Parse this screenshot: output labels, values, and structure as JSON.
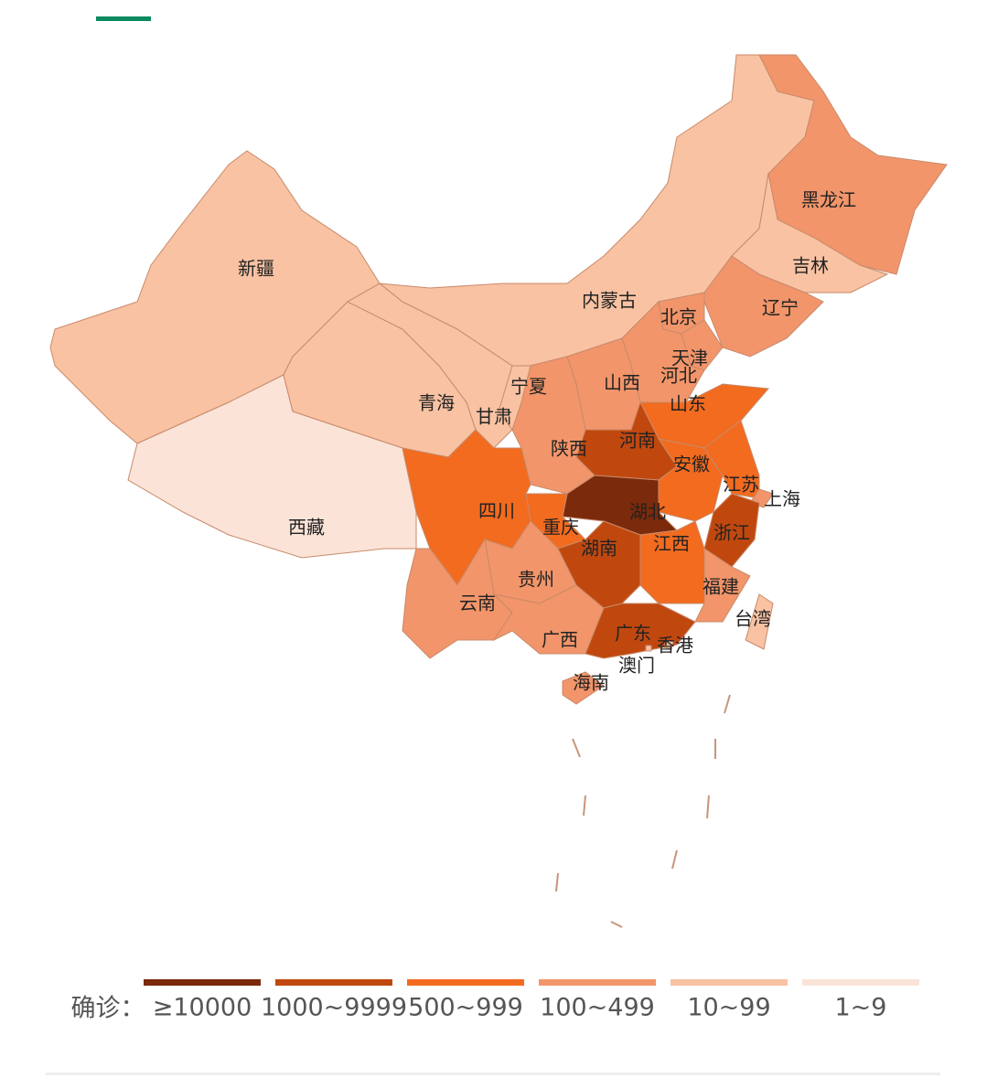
{
  "legend": {
    "title": "确诊：",
    "items": [
      {
        "label": "≥10000",
        "color": "#7b2a0c"
      },
      {
        "label": "1000~9999",
        "color": "#c0480f"
      },
      {
        "label": "500~999",
        "color": "#f26b1f"
      },
      {
        "label": "100~499",
        "color": "#f2956a"
      },
      {
        "label": "10~99",
        "color": "#f8c2a3"
      },
      {
        "label": "1~9",
        "color": "#fbe3d8"
      }
    ]
  },
  "provinces": [
    {
      "name": "新疆",
      "color": "#f8c2a3"
    },
    {
      "name": "西藏",
      "color": "#fbe3d8"
    },
    {
      "name": "青海",
      "color": "#f8c2a3"
    },
    {
      "name": "甘肃",
      "color": "#f8c2a3"
    },
    {
      "name": "内蒙古",
      "color": "#f8c2a3"
    },
    {
      "name": "黑龙江",
      "color": "#f2956a"
    },
    {
      "name": "吉林",
      "color": "#f8c2a3"
    },
    {
      "name": "辽宁",
      "color": "#f2956a"
    },
    {
      "name": "北京",
      "color": "#f2956a"
    },
    {
      "name": "天津",
      "color": "#f2956a"
    },
    {
      "name": "河北",
      "color": "#f2956a"
    },
    {
      "name": "山西",
      "color": "#f2956a"
    },
    {
      "name": "山东",
      "color": "#f26b1f"
    },
    {
      "name": "河南",
      "color": "#c0480f"
    },
    {
      "name": "陕西",
      "color": "#f2956a"
    },
    {
      "name": "宁夏",
      "color": "#f8c2a3"
    },
    {
      "name": "安徽",
      "color": "#f26b1f"
    },
    {
      "name": "江苏",
      "color": "#f26b1f"
    },
    {
      "name": "上海",
      "color": "#f2956a"
    },
    {
      "name": "浙江",
      "color": "#c0480f"
    },
    {
      "name": "湖北",
      "color": "#7b2a0c"
    },
    {
      "name": "重庆",
      "color": "#f26b1f"
    },
    {
      "name": "四川",
      "color": "#f26b1f"
    },
    {
      "name": "贵州",
      "color": "#f2956a"
    },
    {
      "name": "云南",
      "color": "#f2956a"
    },
    {
      "name": "广西",
      "color": "#f2956a"
    },
    {
      "name": "湖南",
      "color": "#c0480f"
    },
    {
      "name": "江西",
      "color": "#f26b1f"
    },
    {
      "name": "福建",
      "color": "#f2956a"
    },
    {
      "name": "广东",
      "color": "#c0480f"
    },
    {
      "name": "海南",
      "color": "#f2956a"
    },
    {
      "name": "台湾",
      "color": "#f8c2a3"
    },
    {
      "name": "香港",
      "color": "#f8c2a3"
    },
    {
      "name": "澳门",
      "color": "#f8c2a3"
    }
  ]
}
